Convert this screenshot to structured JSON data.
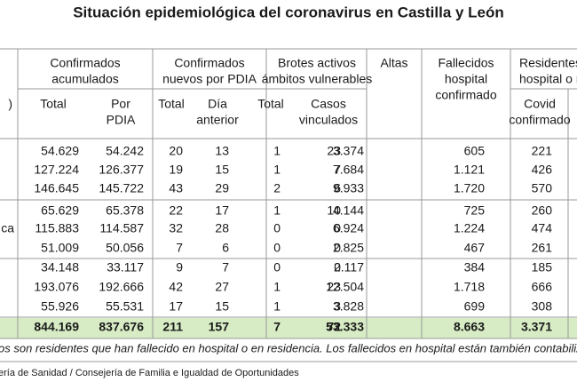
{
  "title": "Situación epidemiológica del coronavirus en Castilla y León",
  "header": {
    "row_label": ")",
    "groups": [
      {
        "lines": [
          "Confirmados",
          "acumulados"
        ]
      },
      {
        "lines": [
          "Confirmados",
          "nuevos por PDIA"
        ]
      },
      {
        "lines": [
          "Brotes activos",
          "ámbitos vulnerables"
        ]
      },
      {
        "lines": [
          "Altas"
        ]
      },
      {
        "lines": [
          "Fallecidos",
          "hospital",
          "confirmado"
        ]
      },
      {
        "lines": [
          "Residentes",
          "hospital o re"
        ]
      }
    ],
    "subheaders": [
      [
        "Total"
      ],
      [
        "Por",
        "PDIA"
      ],
      [
        "Total"
      ],
      [
        "Día",
        "anterior"
      ],
      [
        "Total"
      ],
      [
        "Casos",
        "vinculados"
      ],
      [
        "Covid",
        "confirmado"
      ]
    ]
  },
  "row_label_visible": "ca",
  "rows": [
    [
      "54.629",
      "54.242",
      "20",
      "13",
      "1",
      "23",
      "3.374",
      "605",
      "221"
    ],
    [
      "127.224",
      "126.377",
      "19",
      "15",
      "1",
      "7",
      "7.684",
      "1.121",
      "426"
    ],
    [
      "146.645",
      "145.722",
      "43",
      "29",
      "2",
      "6",
      "9.933",
      "1.720",
      "570"
    ],
    [
      "65.629",
      "65.378",
      "22",
      "17",
      "1",
      "10",
      "4.144",
      "725",
      "260"
    ],
    [
      "115.883",
      "114.587",
      "32",
      "28",
      "0",
      "0",
      "6.924",
      "1.224",
      "474"
    ],
    [
      "51.009",
      "50.056",
      "7",
      "6",
      "0",
      "0",
      "2.825",
      "467",
      "261"
    ],
    [
      "34.148",
      "33.117",
      "9",
      "7",
      "0",
      "0",
      "2.117",
      "384",
      "185"
    ],
    [
      "193.076",
      "192.666",
      "42",
      "27",
      "1",
      "23",
      "12.504",
      "1.718",
      "666"
    ],
    [
      "55.926",
      "55.531",
      "17",
      "15",
      "1",
      "3",
      "3.828",
      "699",
      "308"
    ]
  ],
  "total": [
    "844.169",
    "837.676",
    "211",
    "157",
    "7",
    "72",
    "53.333",
    "8.663",
    "3.371"
  ],
  "footnote": "os son residentes que han fallecido en hospital o en residencia. Los fallecidos en hospital están también contabilizados por Sanid",
  "source": "ería de Sanidad / Consejería de Familia e Igualdad de Oportunidades"
}
